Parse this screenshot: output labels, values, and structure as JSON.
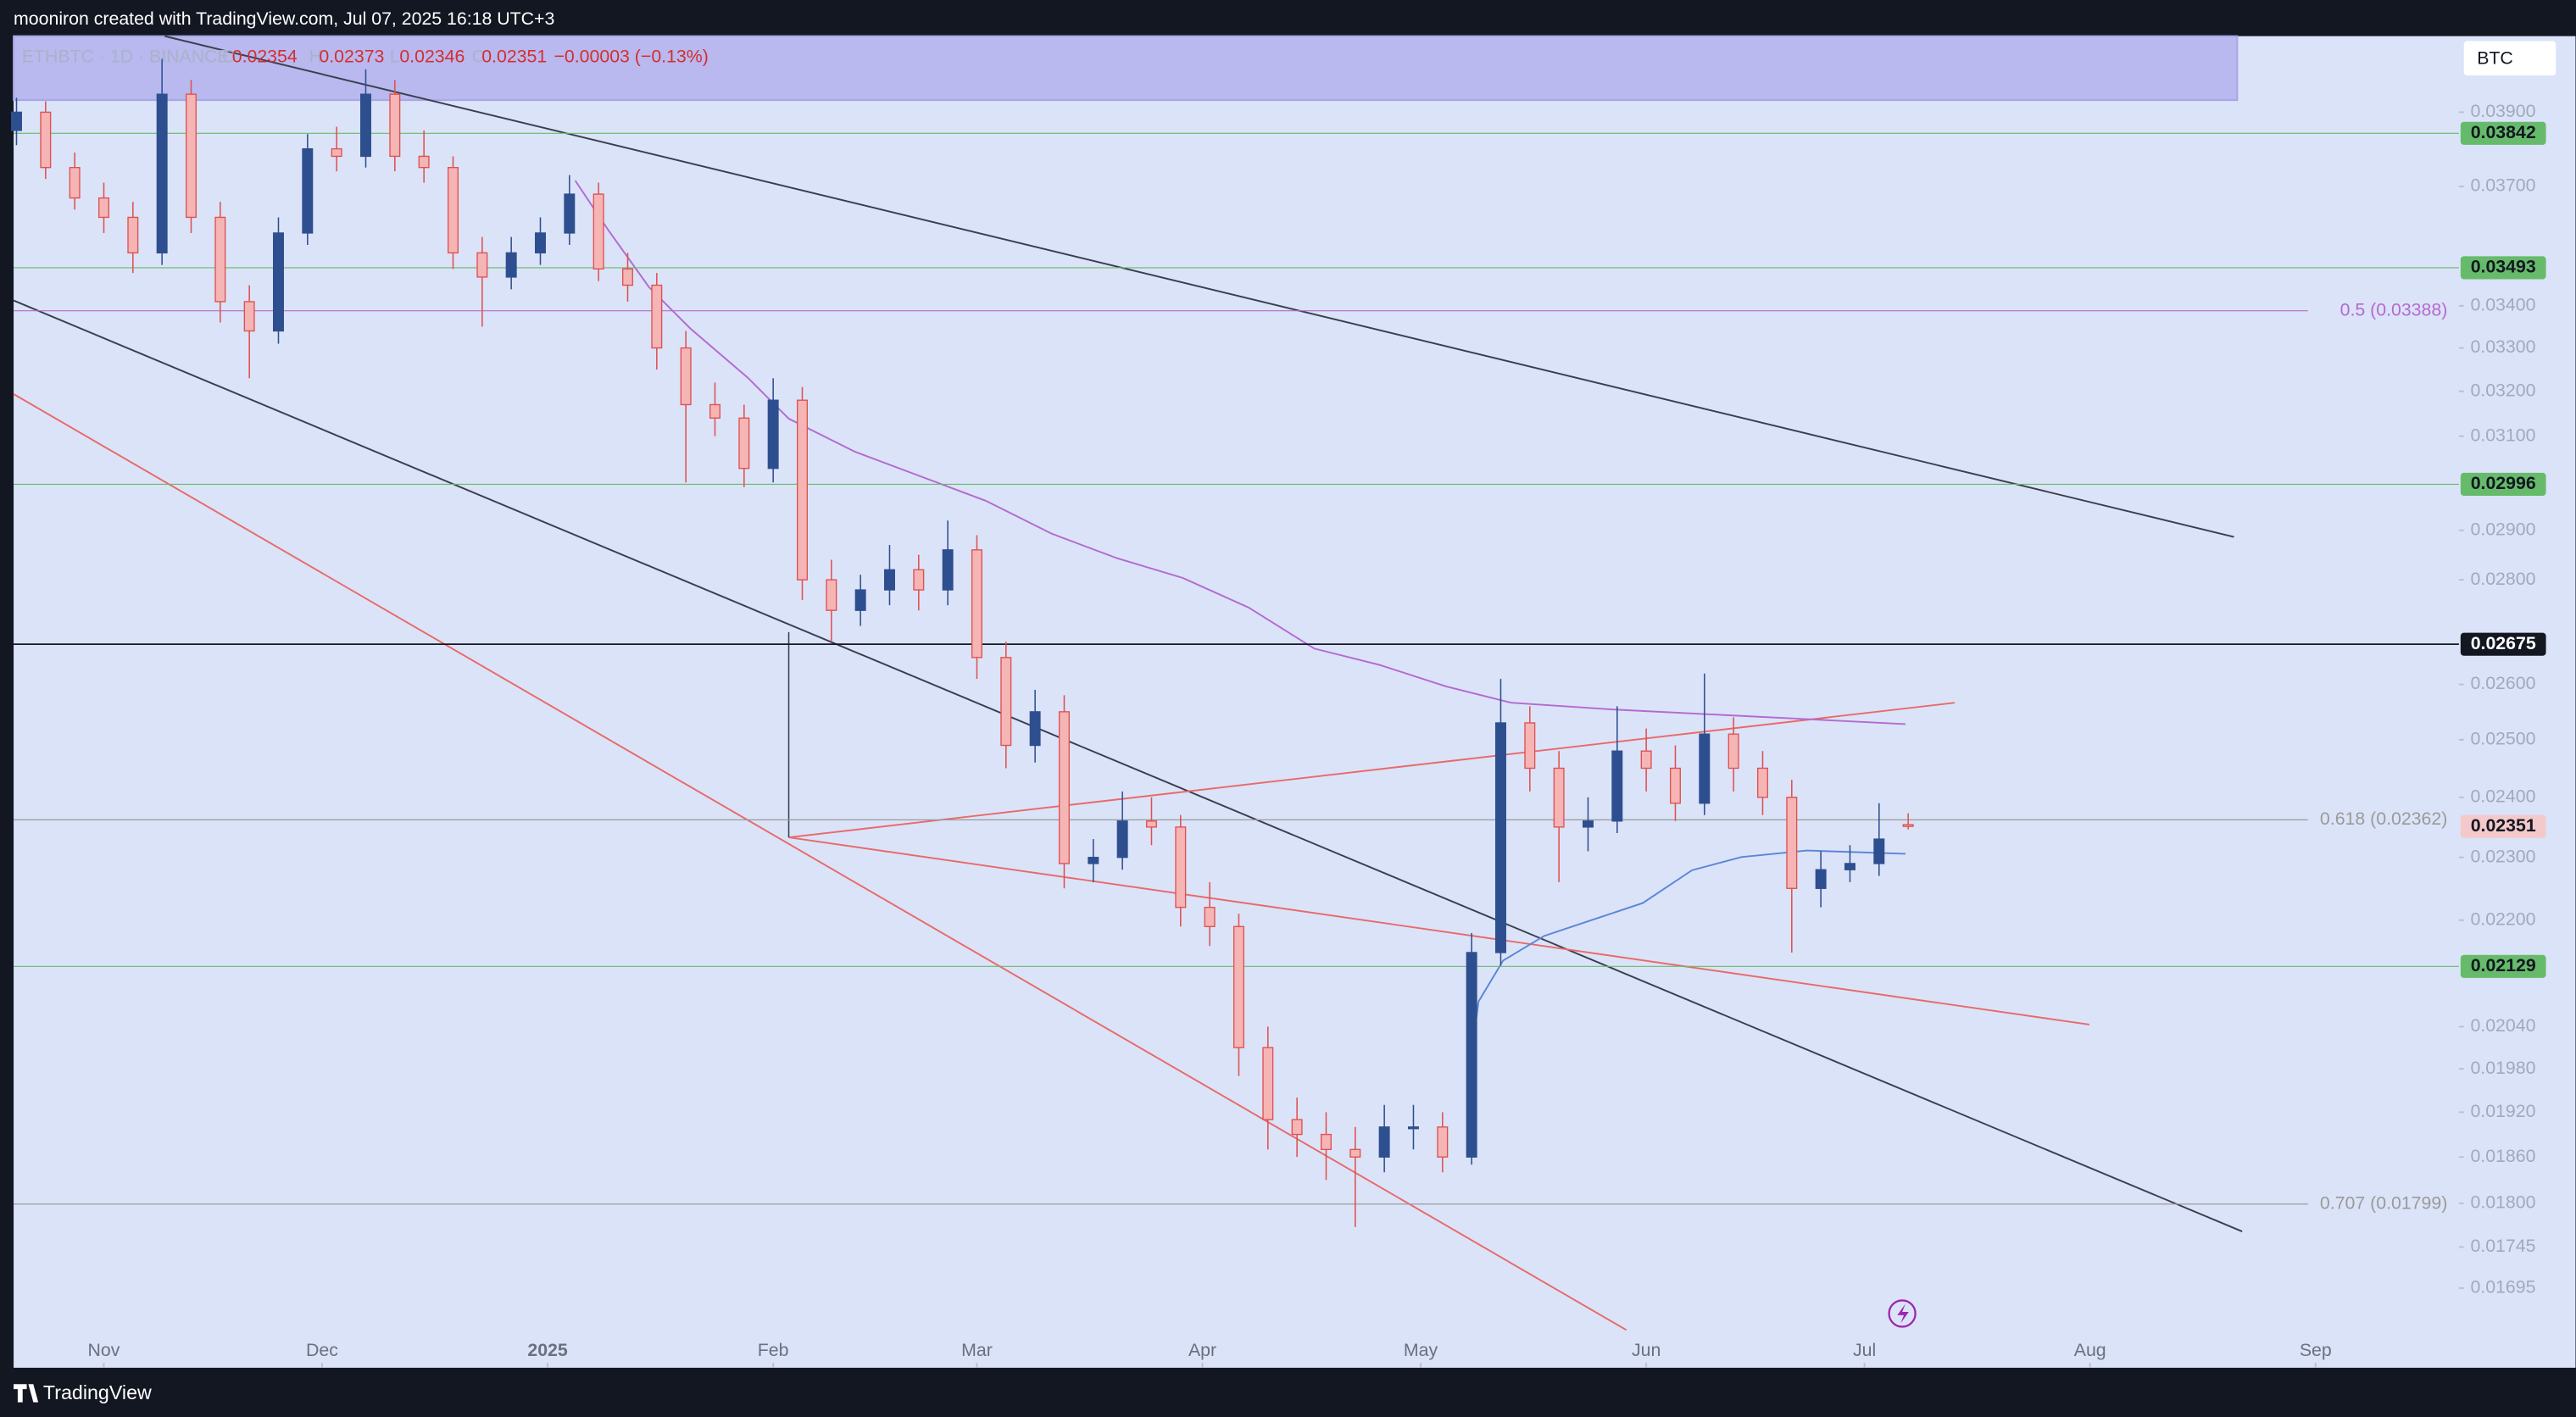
{
  "chart_data": {
    "type": "candlestick",
    "attribution": "mooniron created with TradingView.com, Jul 07, 2025 16:18 UTC+3",
    "symbol": "ETHBTC · 1D · BINANCE",
    "ohlc_keys": [
      "O",
      "H",
      "L",
      "C"
    ],
    "change": "−0.00003 (−0.13%)",
    "currency": "BTC",
    "brand": "TradingView",
    "log_scale": true,
    "up_color": "#2e4f8f",
    "down_color": "#f5b5b5",
    "down_edge": "#e05050",
    "x": [
      -12,
      -8,
      -4,
      0,
      4,
      8,
      12,
      16,
      20,
      24,
      28,
      32,
      36,
      40,
      44,
      48,
      52,
      56,
      60,
      64,
      68,
      72,
      76,
      80,
      84,
      88,
      92,
      96,
      100,
      104,
      108,
      112,
      116,
      120,
      124,
      128,
      132,
      136,
      140,
      144,
      148,
      152,
      156,
      160,
      164,
      168,
      172,
      176,
      180,
      184,
      188,
      192,
      196,
      200,
      204,
      208,
      212,
      216,
      220,
      224,
      228,
      232,
      236,
      240,
      244,
      248
    ],
    "ohlc": [
      [
        0.0385,
        0.0394,
        0.0381,
        0.039
      ],
      [
        0.039,
        0.0393,
        0.0372,
        0.0375
      ],
      [
        0.0375,
        0.0379,
        0.0364,
        0.0367
      ],
      [
        0.0367,
        0.0371,
        0.0358,
        0.0362
      ],
      [
        0.0362,
        0.0366,
        0.0348,
        0.0353
      ],
      [
        0.0353,
        0.0405,
        0.035,
        0.0395
      ],
      [
        0.0395,
        0.0399,
        0.0358,
        0.0362
      ],
      [
        0.0362,
        0.0366,
        0.0336,
        0.0341
      ],
      [
        0.0341,
        0.0345,
        0.0323,
        0.0334
      ],
      [
        0.0334,
        0.0362,
        0.0331,
        0.0358
      ],
      [
        0.0358,
        0.0384,
        0.0355,
        0.038
      ],
      [
        0.038,
        0.0386,
        0.0374,
        0.0378
      ],
      [
        0.0378,
        0.0402,
        0.0375,
        0.0395
      ],
      [
        0.0395,
        0.0399,
        0.0374,
        0.0378
      ],
      [
        0.0378,
        0.0385,
        0.0371,
        0.0375
      ],
      [
        0.0375,
        0.0378,
        0.0349,
        0.0353
      ],
      [
        0.0353,
        0.0357,
        0.0335,
        0.0347
      ],
      [
        0.0347,
        0.0357,
        0.0344,
        0.0353
      ],
      [
        0.0353,
        0.0362,
        0.035,
        0.0358
      ],
      [
        0.0358,
        0.0373,
        0.0355,
        0.0368
      ],
      [
        0.0368,
        0.0371,
        0.0346,
        0.0349
      ],
      [
        0.0349,
        0.0353,
        0.0341,
        0.0345
      ],
      [
        0.0345,
        0.0348,
        0.0325,
        0.033
      ],
      [
        0.033,
        0.0334,
        0.03,
        0.0317
      ],
      [
        0.0317,
        0.0322,
        0.031,
        0.0314
      ],
      [
        0.0314,
        0.0317,
        0.0299,
        0.0303
      ],
      [
        0.0303,
        0.0323,
        0.03,
        0.0318
      ],
      [
        0.0318,
        0.0321,
        0.0276,
        0.028
      ],
      [
        0.028,
        0.0284,
        0.0268,
        0.0274
      ],
      [
        0.0274,
        0.0281,
        0.0271,
        0.0278
      ],
      [
        0.0278,
        0.0287,
        0.0275,
        0.0282
      ],
      [
        0.0282,
        0.0285,
        0.0274,
        0.0278
      ],
      [
        0.0278,
        0.0292,
        0.0275,
        0.0286
      ],
      [
        0.0286,
        0.0289,
        0.0261,
        0.0265
      ],
      [
        0.0265,
        0.0268,
        0.0245,
        0.0249
      ],
      [
        0.0249,
        0.0259,
        0.0246,
        0.0255
      ],
      [
        0.0255,
        0.0258,
        0.0225,
        0.0229
      ],
      [
        0.0229,
        0.0233,
        0.0226,
        0.023
      ],
      [
        0.023,
        0.0241,
        0.0228,
        0.0236
      ],
      [
        0.0236,
        0.024,
        0.0232,
        0.0235
      ],
      [
        0.0235,
        0.0237,
        0.0219,
        0.0222
      ],
      [
        0.0222,
        0.0226,
        0.0216,
        0.0219
      ],
      [
        0.0219,
        0.0221,
        0.0197,
        0.0201
      ],
      [
        0.0201,
        0.0204,
        0.0187,
        0.0191
      ],
      [
        0.0191,
        0.0194,
        0.0186,
        0.0189
      ],
      [
        0.0189,
        0.0192,
        0.0183,
        0.0187
      ],
      [
        0.0187,
        0.019,
        0.0177,
        0.0186
      ],
      [
        0.0186,
        0.0193,
        0.0184,
        0.019
      ],
      [
        0.019,
        0.0193,
        0.0187,
        0.019
      ],
      [
        0.019,
        0.0192,
        0.0184,
        0.0186
      ],
      [
        0.0186,
        0.0218,
        0.0185,
        0.0215
      ],
      [
        0.0215,
        0.0261,
        0.0213,
        0.0253
      ],
      [
        0.0253,
        0.0256,
        0.0241,
        0.0245
      ],
      [
        0.0245,
        0.0248,
        0.0226,
        0.0235
      ],
      [
        0.0235,
        0.024,
        0.0231,
        0.0236
      ],
      [
        0.0236,
        0.0256,
        0.0234,
        0.0248
      ],
      [
        0.0248,
        0.0252,
        0.0241,
        0.0245
      ],
      [
        0.0245,
        0.0249,
        0.0236,
        0.0239
      ],
      [
        0.0239,
        0.0262,
        0.0237,
        0.0251
      ],
      [
        0.0251,
        0.0254,
        0.0241,
        0.0245
      ],
      [
        0.0245,
        0.0248,
        0.0237,
        0.024
      ],
      [
        0.024,
        0.0243,
        0.0215,
        0.0225
      ],
      [
        0.0225,
        0.0231,
        0.0222,
        0.0228
      ],
      [
        0.0228,
        0.0232,
        0.0226,
        0.0229
      ],
      [
        0.0229,
        0.0239,
        0.0227,
        0.0233
      ],
      [
        0.02354,
        0.02373,
        0.02346,
        0.02351
      ]
    ],
    "xlim": [
      -12.4,
      323.7
    ],
    "xticks": [
      {
        "value": 0,
        "label": "Nov"
      },
      {
        "value": 30,
        "label": "Dec"
      },
      {
        "value": 61,
        "label": "2025"
      },
      {
        "value": 92,
        "label": "Feb"
      },
      {
        "value": 120,
        "label": "Mar"
      },
      {
        "value": 151,
        "label": "Apr"
      },
      {
        "value": 181,
        "label": "May"
      },
      {
        "value": 212,
        "label": "Jun"
      },
      {
        "value": 242,
        "label": "Jul"
      },
      {
        "value": 273,
        "label": "Aug"
      },
      {
        "value": 304,
        "label": "Sep"
      }
    ],
    "ylim": [
      0.01602,
      0.04116
    ],
    "yticks": [
      {
        "value": 0.039,
        "label": "0.03900"
      },
      {
        "value": 0.037,
        "label": "0.03700"
      },
      {
        "value": 0.034,
        "label": "0.03400"
      },
      {
        "value": 0.033,
        "label": "0.03300"
      },
      {
        "value": 0.032,
        "label": "0.03200"
      },
      {
        "value": 0.031,
        "label": "0.03100"
      },
      {
        "value": 0.029,
        "label": "0.02900"
      },
      {
        "value": 0.028,
        "label": "0.02800"
      },
      {
        "value": 0.026,
        "label": "0.02600"
      },
      {
        "value": 0.025,
        "label": "0.02500"
      },
      {
        "value": 0.024,
        "label": "0.02400"
      },
      {
        "value": 0.023,
        "label": "0.02300"
      },
      {
        "value": 0.022,
        "label": "0.02200"
      },
      {
        "value": 0.0204,
        "label": "0.02040"
      },
      {
        "value": 0.0198,
        "label": "0.01980"
      },
      {
        "value": 0.0192,
        "label": "0.01920"
      },
      {
        "value": 0.0186,
        "label": "0.01860"
      },
      {
        "value": 0.018,
        "label": "0.01800"
      },
      {
        "value": 0.01745,
        "label": "0.01745"
      },
      {
        "value": 0.01695,
        "label": "0.01695"
      }
    ],
    "levels": [
      {
        "value": 0.03842,
        "color": "#66bb6a"
      },
      {
        "value": 0.03493,
        "color": "#66bb6a"
      },
      {
        "value": 0.02996,
        "color": "#66bb6a"
      },
      {
        "value": 0.02675,
        "color": "#131722"
      },
      {
        "value": 0.02129,
        "color": "#66bb6a"
      }
    ],
    "fib_levels": [
      {
        "value": 0.03388,
        "label": "0.5 (0.03388)",
        "color": "#b36ad0"
      },
      {
        "value": 0.02362,
        "label": "0.618 (0.02362)",
        "color": "#9a9a9a"
      },
      {
        "value": 0.01799,
        "label": "0.707 (0.01799)",
        "color": "#9a9a9a"
      }
    ],
    "last_price_color": "#f4c9cb"
  }
}
